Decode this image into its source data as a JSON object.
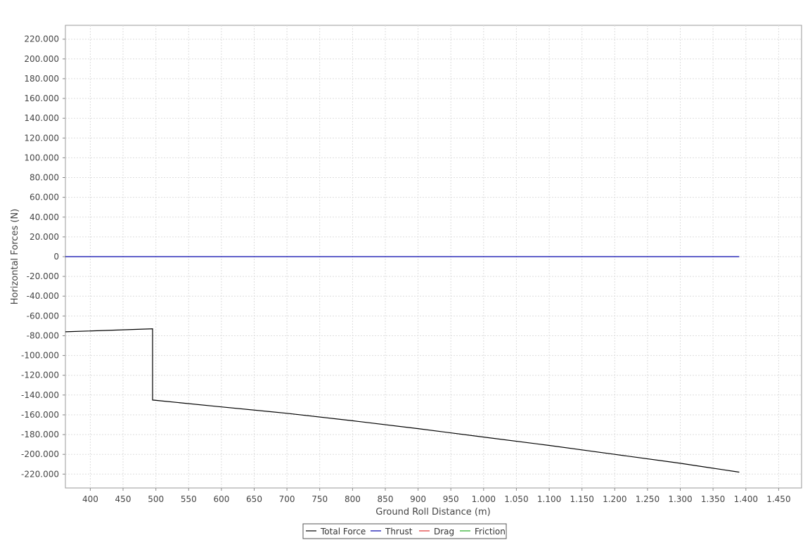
{
  "chart_data": {
    "type": "line",
    "title": "",
    "xlabel": "Ground Roll Distance (m)",
    "ylabel": "Horizontal Forces (N)",
    "xlim": [
      362,
      1485
    ],
    "ylim": [
      -234000,
      234000
    ],
    "grid": true,
    "legend_position": "bottom-center",
    "x_ticks": [
      {
        "value": 400,
        "label": "400"
      },
      {
        "value": 450,
        "label": "450"
      },
      {
        "value": 500,
        "label": "500"
      },
      {
        "value": 550,
        "label": "550"
      },
      {
        "value": 600,
        "label": "600"
      },
      {
        "value": 650,
        "label": "650"
      },
      {
        "value": 700,
        "label": "700"
      },
      {
        "value": 750,
        "label": "750"
      },
      {
        "value": 800,
        "label": "800"
      },
      {
        "value": 850,
        "label": "850"
      },
      {
        "value": 900,
        "label": "900"
      },
      {
        "value": 950,
        "label": "950"
      },
      {
        "value": 1000,
        "label": "1.000"
      },
      {
        "value": 1050,
        "label": "1.050"
      },
      {
        "value": 1100,
        "label": "1.100"
      },
      {
        "value": 1150,
        "label": "1.150"
      },
      {
        "value": 1200,
        "label": "1.200"
      },
      {
        "value": 1250,
        "label": "1.250"
      },
      {
        "value": 1300,
        "label": "1.300"
      },
      {
        "value": 1350,
        "label": "1.350"
      },
      {
        "value": 1400,
        "label": "1.400"
      },
      {
        "value": 1450,
        "label": "1.450"
      }
    ],
    "y_ticks": [
      {
        "value": 220000,
        "label": "220.000"
      },
      {
        "value": 200000,
        "label": "200.000"
      },
      {
        "value": 180000,
        "label": "180.000"
      },
      {
        "value": 160000,
        "label": "160.000"
      },
      {
        "value": 140000,
        "label": "140.000"
      },
      {
        "value": 120000,
        "label": "120.000"
      },
      {
        "value": 100000,
        "label": "100.000"
      },
      {
        "value": 80000,
        "label": "80.000"
      },
      {
        "value": 60000,
        "label": "60.000"
      },
      {
        "value": 40000,
        "label": "40.000"
      },
      {
        "value": 20000,
        "label": "20.000"
      },
      {
        "value": 0,
        "label": "0"
      },
      {
        "value": -20000,
        "label": "-20.000"
      },
      {
        "value": -40000,
        "label": "-40.000"
      },
      {
        "value": -60000,
        "label": "-60.000"
      },
      {
        "value": -80000,
        "label": "-80.000"
      },
      {
        "value": -100000,
        "label": "-100.000"
      },
      {
        "value": -120000,
        "label": "-120.000"
      },
      {
        "value": -140000,
        "label": "-140.000"
      },
      {
        "value": -160000,
        "label": "-160.000"
      },
      {
        "value": -180000,
        "label": "-180.000"
      },
      {
        "value": -200000,
        "label": "-200.000"
      },
      {
        "value": -220000,
        "label": "-220.000"
      }
    ],
    "series": [
      {
        "name": "Total Force",
        "color": "#000000",
        "points": [
          [
            362,
            -76000
          ],
          [
            495,
            -73000
          ],
          [
            495,
            -145000
          ],
          [
            600,
            -152000
          ],
          [
            700,
            -158500
          ],
          [
            800,
            -166000
          ],
          [
            900,
            -174000
          ],
          [
            1000,
            -182500
          ],
          [
            1100,
            -191000
          ],
          [
            1200,
            -200000
          ],
          [
            1300,
            -209000
          ],
          [
            1390,
            -218000
          ]
        ]
      },
      {
        "name": "Thrust",
        "color": "#0000aa",
        "points": [
          [
            362,
            0
          ],
          [
            1390,
            0
          ]
        ]
      },
      {
        "name": "Drag",
        "color": "#e03030",
        "points": []
      },
      {
        "name": "Friction",
        "color": "#22aa22",
        "points": []
      }
    ]
  }
}
